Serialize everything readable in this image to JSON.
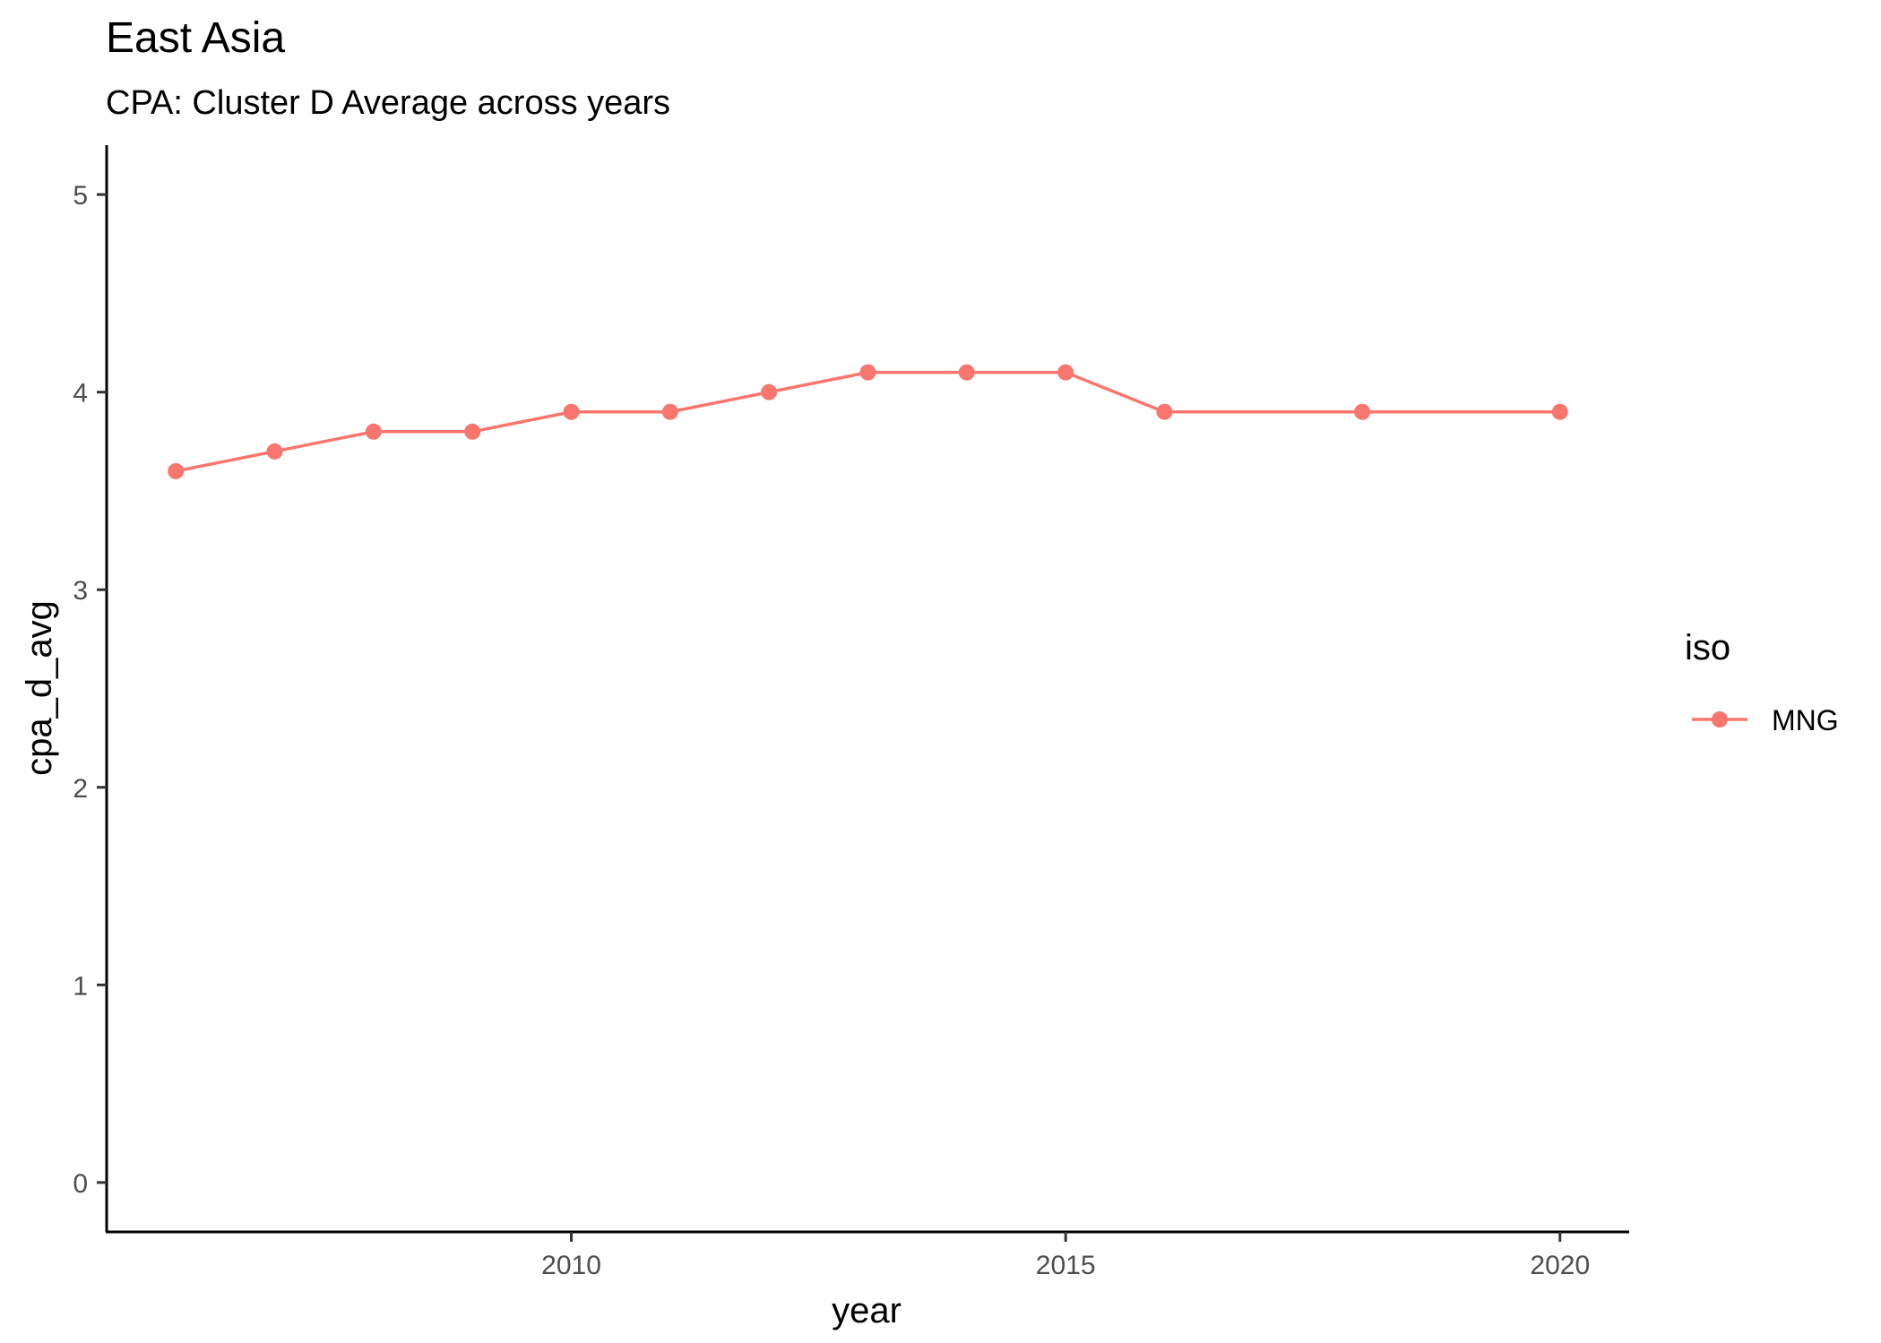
{
  "chart_data": {
    "type": "line",
    "title": "East Asia",
    "subtitle": "CPA: Cluster D Average across years",
    "xlabel": "year",
    "ylabel": "cpa_d_avg",
    "x_ticks": [
      2010,
      2015,
      2020
    ],
    "y_ticks": [
      0,
      1,
      2,
      3,
      4,
      5
    ],
    "xlim": [
      2005.3,
      2020.7
    ],
    "ylim": [
      -0.25,
      5.25
    ],
    "grid": false,
    "legend": {
      "title": "iso",
      "position": "right"
    },
    "series": [
      {
        "name": "MNG",
        "color": "#F8766D",
        "x": [
          2006,
          2007,
          2008,
          2009,
          2010,
          2011,
          2012,
          2013,
          2014,
          2015,
          2016,
          2018,
          2020
        ],
        "y": [
          3.6,
          3.7,
          3.8,
          3.8,
          3.9,
          3.9,
          4.0,
          4.1,
          4.1,
          4.1,
          3.9,
          3.9,
          3.9
        ]
      }
    ]
  }
}
